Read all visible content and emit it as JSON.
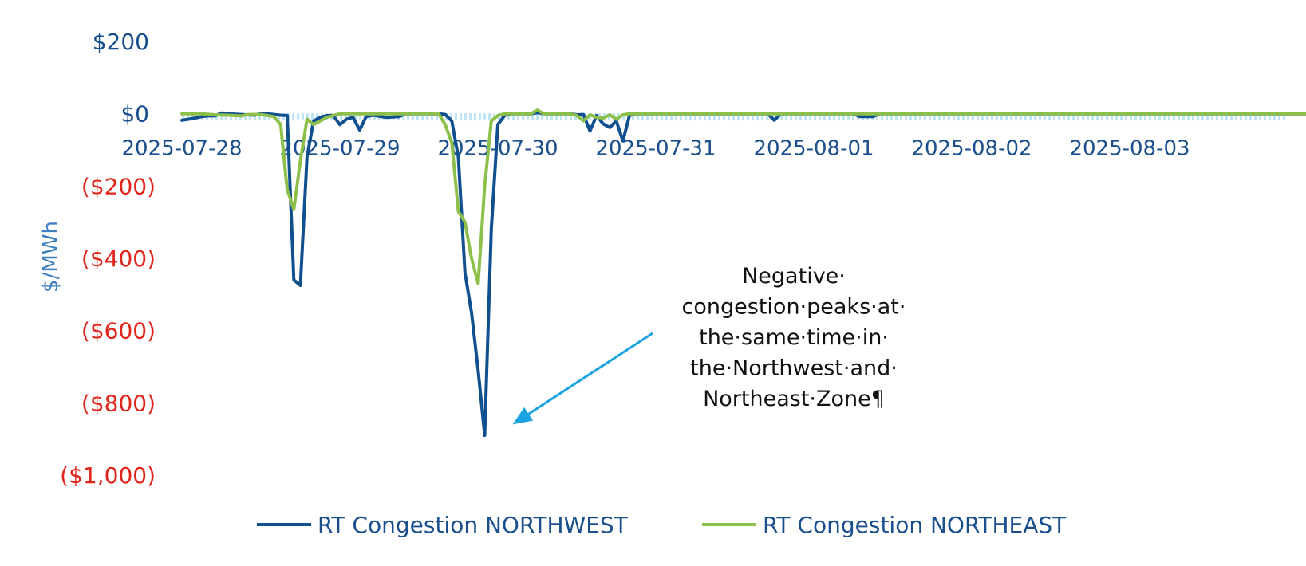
{
  "chart_data": {
    "type": "line",
    "title": "",
    "xlabel": "",
    "ylabel": "$/MWh",
    "ylim": [
      -1000,
      200
    ],
    "x_ticks": [
      "2025-07-28",
      "2025-07-29",
      "2025-07-30",
      "2025-07-31",
      "2025-08-01",
      "2025-08-02",
      "2025-08-03"
    ],
    "y_ticks": [
      {
        "value": 200,
        "label": "$200"
      },
      {
        "value": 0,
        "label": "$0"
      },
      {
        "value": -200,
        "label": "($200)"
      },
      {
        "value": -400,
        "label": "($400)"
      },
      {
        "value": -600,
        "label": "($600)"
      },
      {
        "value": -800,
        "label": "($800)"
      },
      {
        "value": -1000,
        "label": "($1,000)"
      }
    ],
    "legend_position": "bottom",
    "grid": false,
    "series": [
      {
        "name": "RT Congestion NORTHWEST",
        "color": "#11508f",
        "points": [
          [
            "2025-07-28 00:00",
            -18
          ],
          [
            "2025-07-28 01:00",
            -15
          ],
          [
            "2025-07-28 02:00",
            -12
          ],
          [
            "2025-07-28 03:00",
            -8
          ],
          [
            "2025-07-28 04:00",
            -6
          ],
          [
            "2025-07-28 05:00",
            -6
          ],
          [
            "2025-07-28 06:00",
            2
          ],
          [
            "2025-07-28 07:00",
            0
          ],
          [
            "2025-07-28 09:00",
            -2
          ],
          [
            "2025-07-28 11:00",
            -4
          ],
          [
            "2025-07-28 12:00",
            0
          ],
          [
            "2025-07-28 13:00",
            0
          ],
          [
            "2025-07-28 15:00",
            -4
          ],
          [
            "2025-07-28 16:00",
            -5
          ],
          [
            "2025-07-28 17:00",
            -460
          ],
          [
            "2025-07-28 18:00",
            -475
          ],
          [
            "2025-07-28 19:00",
            -120
          ],
          [
            "2025-07-28 20:00",
            -20
          ],
          [
            "2025-07-28 21:00",
            -10
          ],
          [
            "2025-07-28 22:00",
            -5
          ],
          [
            "2025-07-28 23:00",
            -5
          ],
          [
            "2025-07-29 00:00",
            -30
          ],
          [
            "2025-07-29 01:00",
            -15
          ],
          [
            "2025-07-29 02:00",
            -10
          ],
          [
            "2025-07-29 03:00",
            -45
          ],
          [
            "2025-07-29 04:00",
            -8
          ],
          [
            "2025-07-29 05:00",
            -4
          ],
          [
            "2025-07-29 07:00",
            -10
          ],
          [
            "2025-07-29 09:00",
            -8
          ],
          [
            "2025-07-29 10:00",
            0
          ],
          [
            "2025-07-29 15:00",
            0
          ],
          [
            "2025-07-29 16:00",
            -2
          ],
          [
            "2025-07-29 17:00",
            -20
          ],
          [
            "2025-07-29 18:00",
            -120
          ],
          [
            "2025-07-29 19:00",
            -440
          ],
          [
            "2025-07-29 20:00",
            -550
          ],
          [
            "2025-07-29 21:00",
            -710
          ],
          [
            "2025-07-29 22:00",
            -890
          ],
          [
            "2025-07-29 23:00",
            -320
          ],
          [
            "2025-07-30 00:00",
            -30
          ],
          [
            "2025-07-30 01:00",
            -5
          ],
          [
            "2025-07-30 02:00",
            0
          ],
          [
            "2025-07-30 05:00",
            0
          ],
          [
            "2025-07-30 06:00",
            3
          ],
          [
            "2025-07-30 07:00",
            0
          ],
          [
            "2025-07-30 11:00",
            0
          ],
          [
            "2025-07-30 12:00",
            -3
          ],
          [
            "2025-07-30 13:00",
            -2
          ],
          [
            "2025-07-30 14:00",
            -48
          ],
          [
            "2025-07-30 15:00",
            -5
          ],
          [
            "2025-07-30 16:00",
            -28
          ],
          [
            "2025-07-30 17:00",
            -38
          ],
          [
            "2025-07-30 18:00",
            -20
          ],
          [
            "2025-07-30 19:00",
            -75
          ],
          [
            "2025-07-30 20:00",
            -5
          ],
          [
            "2025-07-30 21:00",
            0
          ],
          [
            "2025-07-31 17:00",
            0
          ],
          [
            "2025-07-31 18:00",
            -18
          ],
          [
            "2025-07-31 19:00",
            0
          ],
          [
            "2025-08-01 06:00",
            0
          ],
          [
            "2025-08-01 07:00",
            -8
          ],
          [
            "2025-08-01 09:00",
            -8
          ],
          [
            "2025-08-01 10:00",
            0
          ],
          [
            "2025-08-04 23:00",
            0
          ]
        ]
      },
      {
        "name": "RT Congestion NORTHEAST",
        "color": "#8dc04a",
        "points": [
          [
            "2025-07-28 00:00",
            0
          ],
          [
            "2025-07-28 03:00",
            0
          ],
          [
            "2025-07-28 05:00",
            -3
          ],
          [
            "2025-07-28 07:00",
            -4
          ],
          [
            "2025-07-28 09:00",
            -6
          ],
          [
            "2025-07-28 10:00",
            -2
          ],
          [
            "2025-07-28 12:00",
            -2
          ],
          [
            "2025-07-28 14:00",
            -8
          ],
          [
            "2025-07-28 15:00",
            -30
          ],
          [
            "2025-07-28 16:00",
            -210
          ],
          [
            "2025-07-28 17:00",
            -265
          ],
          [
            "2025-07-28 18:00",
            -130
          ],
          [
            "2025-07-28 19:00",
            -15
          ],
          [
            "2025-07-28 20:00",
            -30
          ],
          [
            "2025-07-28 21:00",
            -20
          ],
          [
            "2025-07-28 22:00",
            -10
          ],
          [
            "2025-07-28 23:00",
            -5
          ],
          [
            "2025-07-29 00:00",
            0
          ],
          [
            "2025-07-29 15:00",
            0
          ],
          [
            "2025-07-29 16:00",
            -30
          ],
          [
            "2025-07-29 17:00",
            -80
          ],
          [
            "2025-07-29 18:00",
            -270
          ],
          [
            "2025-07-29 19:00",
            -300
          ],
          [
            "2025-07-29 20:00",
            -400
          ],
          [
            "2025-07-29 21:00",
            -470
          ],
          [
            "2025-07-29 22:00",
            -200
          ],
          [
            "2025-07-29 23:00",
            -20
          ],
          [
            "2025-07-30 00:00",
            -5
          ],
          [
            "2025-07-30 01:00",
            0
          ],
          [
            "2025-07-30 05:00",
            0
          ],
          [
            "2025-07-30 06:00",
            10
          ],
          [
            "2025-07-30 07:00",
            0
          ],
          [
            "2025-07-30 11:00",
            0
          ],
          [
            "2025-07-30 12:00",
            -5
          ],
          [
            "2025-07-30 13:00",
            -20
          ],
          [
            "2025-07-30 14:00",
            -3
          ],
          [
            "2025-07-30 15:00",
            -10
          ],
          [
            "2025-07-30 16:00",
            -12
          ],
          [
            "2025-07-30 17:00",
            -3
          ],
          [
            "2025-07-30 18:00",
            -15
          ],
          [
            "2025-07-30 19:00",
            -3
          ],
          [
            "2025-07-30 20:00",
            0
          ],
          [
            "2025-08-04 23:00",
            0
          ]
        ]
      }
    ],
    "annotations": [
      {
        "lines": [
          "Negative·",
          "congestion·peaks·at·",
          "the·same·time·in·",
          "the·Northwest·and·",
          "Northeast·Zone¶"
        ],
        "arrow_color": "#1aa3e0",
        "arrow_target": [
          "2025-07-29 22:00",
          -820
        ]
      }
    ]
  }
}
